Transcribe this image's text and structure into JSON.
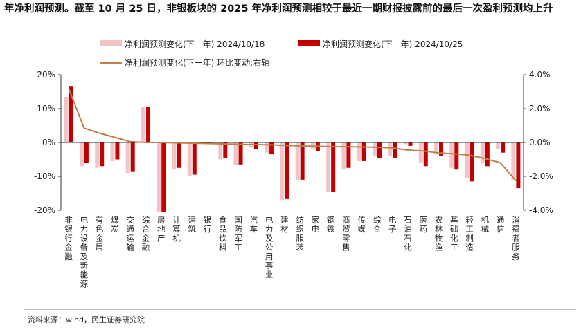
{
  "title": "年净利润预测。截至 10 月 25 日，非银板块的 2025 年净利润预测相较于最近一期财报披露前的最后一次盈利预测均上升",
  "source": "资料来源：wind，民生证券研究院",
  "colors": {
    "series1": "#f2c4c8",
    "series2": "#c00000",
    "line": "#c0804a",
    "axis": "#333333"
  },
  "chart_data": {
    "type": "bar",
    "categories": [
      "非银行金融",
      "电力设备及新能源",
      "有色金属",
      "煤炭",
      "交通运输",
      "综合金融",
      "房地产",
      "计算机",
      "建筑",
      "银行",
      "食品饮料",
      "国防军工",
      "汽车",
      "电力及公用事业",
      "建材",
      "纺织服装",
      "家电",
      "钢铁",
      "商贸零售",
      "传媒",
      "综合",
      "电子",
      "石油石化",
      "医药",
      "农林牧渔",
      "基础化工",
      "轻工制造",
      "机械",
      "通信",
      "消费者服务"
    ],
    "series": [
      {
        "name": "净利润预测变化(下一年) 2024/10/18",
        "type": "bar",
        "axis": "left",
        "values": [
          13.5,
          -7,
          -7.5,
          -5.5,
          -9,
          10.5,
          -20.5,
          -8,
          -10,
          -0.3,
          -5,
          -6.5,
          -1.5,
          -3,
          -17,
          -11,
          -2,
          -14.5,
          -8,
          -5.5,
          -4,
          -4,
          -0.5,
          -6,
          -3.5,
          -7.5,
          -10.5,
          -6,
          -2,
          -11
        ]
      },
      {
        "name": "净利润预测变化(下一年) 2024/10/25",
        "type": "bar",
        "axis": "left",
        "values": [
          16.5,
          -6,
          -7,
          -5,
          -8.5,
          10.5,
          -20.5,
          -7.5,
          -9.5,
          -0.5,
          -4.5,
          -6.5,
          -2,
          -3.5,
          -16.5,
          -11,
          -2.5,
          -14.5,
          -7.5,
          -5.5,
          -4.5,
          -4.5,
          -1,
          -7,
          -4,
          -8,
          -11.5,
          -7,
          -3,
          -13.5
        ]
      },
      {
        "name": "净利润预测变化(下一年) 环比变动:右轴",
        "type": "line",
        "axis": "right",
        "values": [
          3.2,
          0.85,
          0.55,
          0.3,
          0.05,
          0.0,
          0.0,
          -0.02,
          -0.04,
          -0.06,
          -0.08,
          -0.1,
          -0.12,
          -0.14,
          -0.17,
          -0.2,
          -0.22,
          -0.24,
          -0.25,
          -0.26,
          -0.28,
          -0.32,
          -0.45,
          -0.5,
          -0.62,
          -0.67,
          -0.75,
          -0.95,
          -1.2,
          -2.25
        ]
      }
    ],
    "y_left": {
      "min": -20,
      "max": 20,
      "ticks": [
        "20%",
        "10%",
        "0%",
        "-10%",
        "-20%"
      ]
    },
    "y_right": {
      "min": -4,
      "max": 4,
      "ticks": [
        "4.0%",
        "2.0%",
        "0.0%",
        "-2.0%",
        "-4.0%"
      ]
    },
    "grid": false,
    "legend_position": "top"
  }
}
